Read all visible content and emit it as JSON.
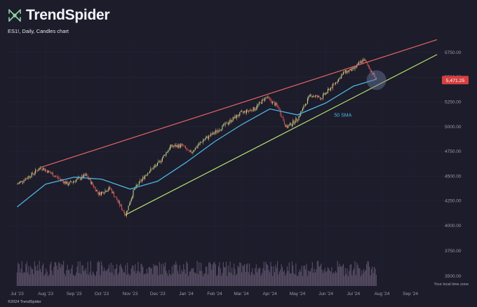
{
  "brand": {
    "name": "TrendSpider",
    "logo_icon": "trendspider-logo-icon"
  },
  "chart_title": "ES1!, Daily, Candles chart",
  "footer": {
    "copyright": "©2024 TrendSpider",
    "timezone_note": "Your local time zone"
  },
  "colors": {
    "background": "#1c1c2b",
    "up_candle": "#c7dd8a",
    "down_candle": "#e05656",
    "resistance_line": "#e86464",
    "support_line": "#b6e36c",
    "sma_line": "#4fb3df",
    "price_badge": "#d6403f",
    "volume": "#5a4f66"
  },
  "chart_data": {
    "type": "candlestick",
    "symbol": "ES1!",
    "timeframe": "Daily",
    "x_ticks": [
      "Jul '23",
      "Aug '23",
      "Sep '23",
      "Oct '23",
      "Nov '23",
      "Dec '23",
      "Jan '24",
      "Feb '24",
      "Mar '24",
      "Apr '24",
      "May '24",
      "Jun '24",
      "Jul '24",
      "Aug '24",
      "Sep '24"
    ],
    "y_ticks": [
      "4000.00",
      "4250.00",
      "4500.00",
      "4750.00",
      "5000.00",
      "5250.00",
      "5500.00",
      "5750.00"
    ],
    "volume_ticks": [
      "3750.00",
      "3500.00"
    ],
    "ylim": [
      3900,
      5900
    ],
    "last_price": "5,471.25",
    "indicator_label": "50 SMA",
    "price_path": [
      [
        "2023-07-01",
        4420
      ],
      [
        "2023-07-15",
        4505
      ],
      [
        "2023-07-27",
        4590
      ],
      [
        "2023-08-10",
        4510
      ],
      [
        "2023-08-25",
        4420
      ],
      [
        "2023-09-14",
        4510
      ],
      [
        "2023-09-28",
        4320
      ],
      [
        "2023-10-10",
        4380
      ],
      [
        "2023-10-27",
        4110
      ],
      [
        "2023-11-05",
        4360
      ],
      [
        "2023-11-20",
        4540
      ],
      [
        "2023-12-01",
        4620
      ],
      [
        "2023-12-15",
        4800
      ],
      [
        "2023-12-28",
        4810
      ],
      [
        "2024-01-05",
        4730
      ],
      [
        "2024-01-19",
        4860
      ],
      [
        "2024-02-01",
        4940
      ],
      [
        "2024-02-15",
        5040
      ],
      [
        "2024-03-01",
        5140
      ],
      [
        "2024-03-15",
        5180
      ],
      [
        "2024-03-28",
        5300
      ],
      [
        "2024-04-10",
        5200
      ],
      [
        "2024-04-19",
        4990
      ],
      [
        "2024-05-01",
        5080
      ],
      [
        "2024-05-15",
        5320
      ],
      [
        "2024-05-27",
        5290
      ],
      [
        "2024-06-10",
        5430
      ],
      [
        "2024-06-21",
        5550
      ],
      [
        "2024-07-01",
        5580
      ],
      [
        "2024-07-12",
        5680
      ],
      [
        "2024-07-18",
        5600
      ],
      [
        "2024-07-26",
        5471.25
      ]
    ],
    "sma_path": [
      [
        "2023-07-01",
        4190
      ],
      [
        "2023-08-01",
        4420
      ],
      [
        "2023-09-01",
        4490
      ],
      [
        "2023-10-01",
        4470
      ],
      [
        "2023-11-01",
        4370
      ],
      [
        "2023-12-01",
        4450
      ],
      [
        "2024-01-01",
        4640
      ],
      [
        "2024-02-01",
        4850
      ],
      [
        "2024-03-01",
        5020
      ],
      [
        "2024-04-01",
        5180
      ],
      [
        "2024-05-01",
        5120
      ],
      [
        "2024-06-01",
        5240
      ],
      [
        "2024-07-01",
        5410
      ],
      [
        "2024-07-26",
        5480
      ]
    ],
    "trendlines": [
      {
        "name": "resistance",
        "from": [
          "2023-07-27",
          4590
        ],
        "to": [
          "2024-09-30",
          5880
        ]
      },
      {
        "name": "support",
        "from": [
          "2023-10-27",
          4110
        ],
        "to": [
          "2024-09-30",
          5730
        ]
      }
    ],
    "highlight": {
      "date": "2024-07-26",
      "value": 5471.25
    }
  }
}
